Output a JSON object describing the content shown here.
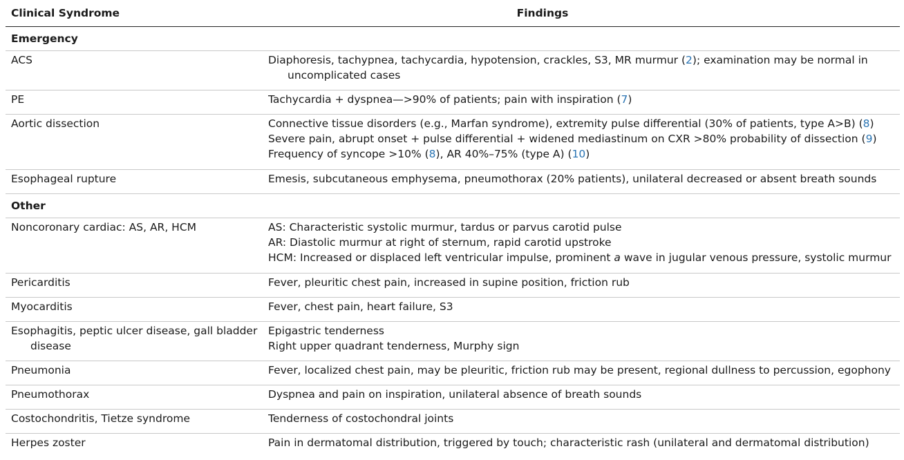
{
  "header": {
    "col1": "Clinical Syndrome",
    "col2": "Findings"
  },
  "sections": [
    {
      "title": "Emergency",
      "rows": [
        {
          "syndrome": [
            "ACS"
          ],
          "findings": [
            {
              "parts": [
                "Diaphoresis, tachypnea, tachycardia, hypotension, crackles, S3, MR murmur (",
                {
                  "ref": "2"
                },
                "); examination may be normal in"
              ]
            },
            {
              "parts": [
                "uncomplicated cases"
              ],
              "hang": true
            }
          ]
        },
        {
          "syndrome": [
            "PE"
          ],
          "findings": [
            {
              "parts": [
                "Tachycardia + dyspnea—>90% of patients; pain with inspiration (",
                {
                  "ref": "7"
                },
                ")"
              ]
            }
          ]
        },
        {
          "syndrome": [
            "Aortic dissection"
          ],
          "findings": [
            {
              "parts": [
                "Connective tissue disorders (e.g., Marfan syndrome), extremity pulse differential (30% of patients, type A>B) (",
                {
                  "ref": "8"
                },
                ")"
              ]
            },
            {
              "parts": [
                "Severe pain, abrupt onset + pulse differential + widened mediastinum on CXR >80% probability of dissection (",
                {
                  "ref": "9"
                },
                ")"
              ]
            },
            {
              "parts": [
                "Frequency of syncope >10% (",
                {
                  "ref": "8"
                },
                "), AR 40%–75% (type A) (",
                {
                  "ref": "10"
                },
                ")"
              ]
            }
          ]
        },
        {
          "syndrome": [
            "Esophageal rupture"
          ],
          "findings": [
            {
              "parts": [
                "Emesis, subcutaneous emphysema, pneumothorax (20% patients), unilateral decreased or absent breath sounds"
              ]
            }
          ]
        }
      ]
    },
    {
      "title": "Other",
      "rows": [
        {
          "syndrome": [
            "Noncoronary cardiac: AS, AR, HCM"
          ],
          "findings": [
            {
              "parts": [
                "AS: Characteristic systolic murmur, tardus or parvus carotid pulse"
              ]
            },
            {
              "parts": [
                "AR: Diastolic murmur at right of sternum, rapid carotid upstroke"
              ]
            },
            {
              "parts": [
                "HCM: Increased or displaced left ventricular impulse, prominent ",
                {
                  "em": "a"
                },
                " wave in jugular venous pressure, systolic murmur"
              ]
            }
          ]
        },
        {
          "syndrome": [
            "Pericarditis"
          ],
          "findings": [
            {
              "parts": [
                "Fever, pleuritic chest pain, increased in supine position, friction rub"
              ]
            }
          ]
        },
        {
          "syndrome": [
            "Myocarditis"
          ],
          "findings": [
            {
              "parts": [
                "Fever, chest pain, heart failure, S3"
              ]
            }
          ]
        },
        {
          "syndrome": [
            "Esophagitis, peptic ulcer disease, gall bladder",
            "disease"
          ],
          "findings": [
            {
              "parts": [
                "Epigastric tenderness"
              ]
            },
            {
              "parts": [
                "Right upper quadrant tenderness, Murphy sign"
              ]
            }
          ]
        },
        {
          "syndrome": [
            "Pneumonia"
          ],
          "findings": [
            {
              "parts": [
                "Fever, localized chest pain, may be pleuritic, friction rub may be present, regional dullness to percussion, egophony"
              ]
            }
          ]
        },
        {
          "syndrome": [
            "Pneumothorax"
          ],
          "findings": [
            {
              "parts": [
                "Dyspnea and pain on inspiration, unilateral absence of breath sounds"
              ]
            }
          ]
        },
        {
          "syndrome": [
            "Costochondritis, Tietze syndrome"
          ],
          "findings": [
            {
              "parts": [
                "Tenderness of costochondral joints"
              ]
            }
          ]
        },
        {
          "syndrome": [
            "Herpes zoster"
          ],
          "findings": [
            {
              "parts": [
                "Pain in dermatomal distribution, triggered by touch; characteristic rash (unilateral and dermatomal distribution)"
              ]
            }
          ]
        }
      ]
    }
  ],
  "colors": {
    "ref": "#2a74b3",
    "text": "#1a1a1a",
    "rule": "#c8c8c8"
  }
}
